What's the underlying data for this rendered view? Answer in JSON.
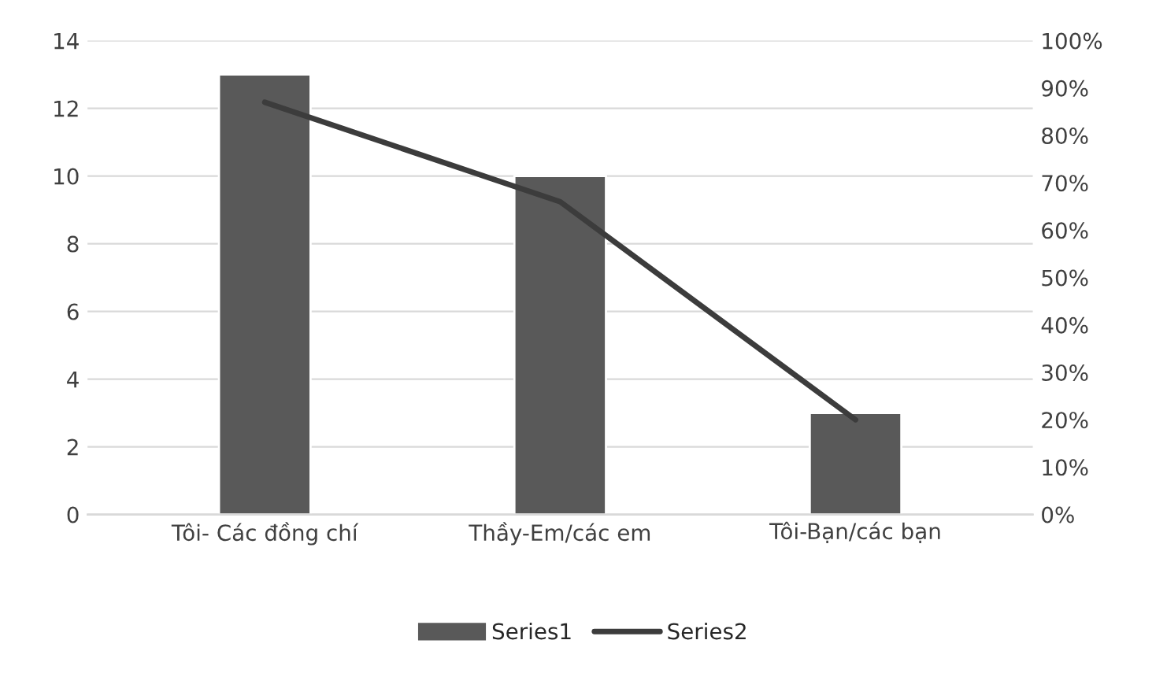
{
  "chart_data": {
    "type": "bar",
    "categories": [
      "Tôi- Các đồng chí",
      "Thầy-Em/các em",
      "Tôi-Bạn/các bạn"
    ],
    "series": [
      {
        "name": "Series1",
        "color": "#595959",
        "values": [
          13,
          10,
          3
        ]
      },
      {
        "name": "Series2",
        "type": "line",
        "axis": "y2",
        "color": "#3c3c3c",
        "values": [
          87,
          66,
          20
        ]
      }
    ],
    "ylim": [
      0,
      14
    ],
    "yticks": [
      0,
      2,
      4,
      6,
      8,
      10,
      12,
      14
    ],
    "y2lim": [
      0,
      100
    ],
    "y2ticks": [
      {
        "value": 0,
        "label": "0%"
      },
      {
        "value": 10,
        "label": "10%"
      },
      {
        "value": 20,
        "label": "20%"
      },
      {
        "value": 30,
        "label": "30%"
      },
      {
        "value": 40,
        "label": "40%"
      },
      {
        "value": 50,
        "label": "50%"
      },
      {
        "value": 60,
        "label": "60%"
      },
      {
        "value": 70,
        "label": "70%"
      },
      {
        "value": 80,
        "label": "80%"
      },
      {
        "value": 90,
        "label": "90%"
      },
      {
        "value": 100,
        "label": "100%"
      }
    ],
    "grid": "y",
    "legend": "bottom",
    "marker": "none",
    "line_style": "solid"
  }
}
